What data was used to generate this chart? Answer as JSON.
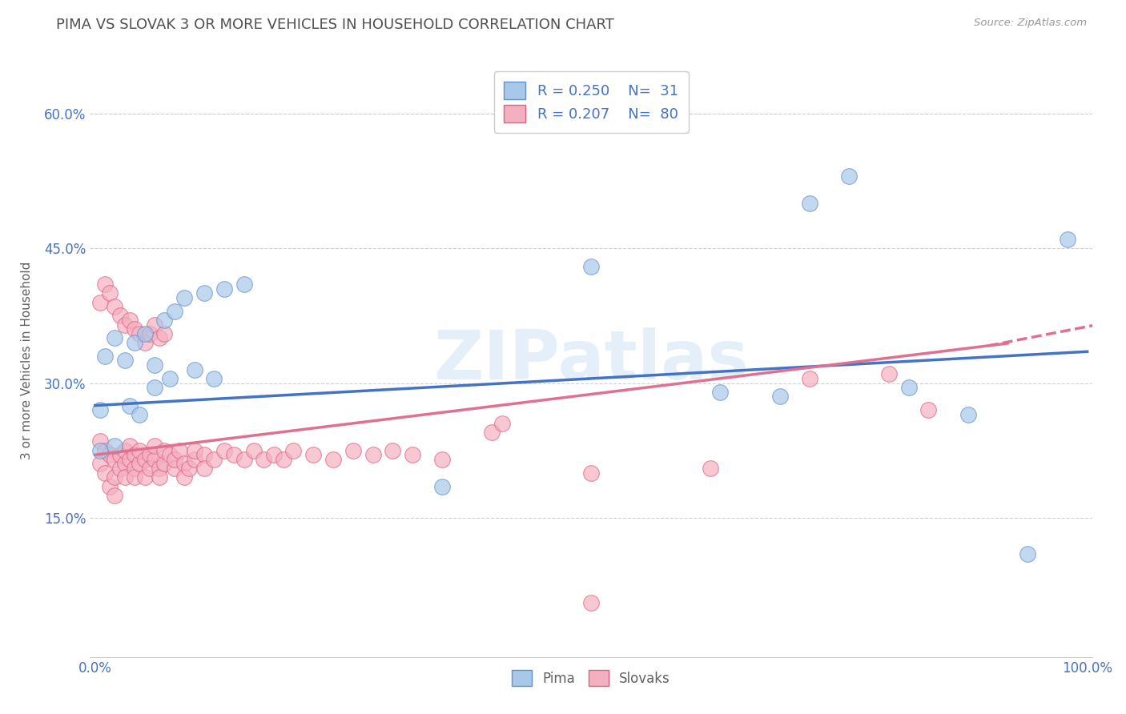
{
  "title": "PIMA VS SLOVAK 3 OR MORE VEHICLES IN HOUSEHOLD CORRELATION CHART",
  "source": "Source: ZipAtlas.com",
  "xlabel": "",
  "ylabel": "3 or more Vehicles in Household",
  "watermark": "ZIPatlas",
  "legend_labels": [
    "Pima",
    "Slovaks"
  ],
  "pima_R": 0.25,
  "pima_N": 31,
  "slovak_R": 0.207,
  "slovak_N": 80,
  "xlim": [
    -0.005,
    1.005
  ],
  "ylim": [
    -0.005,
    0.655
  ],
  "xticks": [
    0.0,
    0.2,
    0.4,
    0.6,
    0.8,
    1.0
  ],
  "xtick_labels": [
    "0.0%",
    "",
    "",
    "",
    "",
    "100.0%"
  ],
  "yticks": [
    0.15,
    0.3,
    0.45,
    0.6
  ],
  "ytick_labels": [
    "15.0%",
    "30.0%",
    "45.0%",
    "60.0%"
  ],
  "pima_color": "#a8c8e8",
  "slovak_color": "#f4b0c0",
  "pima_edge_color": "#6090d0",
  "slovak_edge_color": "#e06080",
  "pima_line_color": "#4472c4",
  "slovak_line_color": "#e07090",
  "background_color": "#ffffff",
  "grid_color": "#d0d0d0",
  "title_color": "#505050",
  "axis_label_color": "#606060",
  "tick_label_color": "#4472c4",
  "legend_text_color": "#4472c4",
  "pima_scatter_x": [
    0.005,
    0.01,
    0.02,
    0.03,
    0.04,
    0.05,
    0.06,
    0.07,
    0.08,
    0.09,
    0.11,
    0.13,
    0.15,
    0.5,
    0.72,
    0.76,
    0.82,
    0.88,
    0.94,
    0.98,
    0.005,
    0.02,
    0.035,
    0.045,
    0.06,
    0.075,
    0.1,
    0.12,
    0.35,
    0.63,
    0.69
  ],
  "pima_scatter_y": [
    0.27,
    0.33,
    0.35,
    0.325,
    0.345,
    0.355,
    0.32,
    0.37,
    0.38,
    0.395,
    0.4,
    0.405,
    0.41,
    0.43,
    0.5,
    0.53,
    0.295,
    0.265,
    0.11,
    0.46,
    0.225,
    0.23,
    0.275,
    0.265,
    0.295,
    0.305,
    0.315,
    0.305,
    0.185,
    0.29,
    0.285
  ],
  "slovak_scatter_x": [
    0.005,
    0.005,
    0.01,
    0.01,
    0.015,
    0.015,
    0.02,
    0.02,
    0.02,
    0.025,
    0.025,
    0.03,
    0.03,
    0.03,
    0.035,
    0.035,
    0.04,
    0.04,
    0.04,
    0.045,
    0.045,
    0.05,
    0.05,
    0.055,
    0.055,
    0.06,
    0.06,
    0.065,
    0.065,
    0.07,
    0.07,
    0.075,
    0.08,
    0.08,
    0.085,
    0.09,
    0.09,
    0.095,
    0.1,
    0.1,
    0.11,
    0.11,
    0.12,
    0.13,
    0.14,
    0.15,
    0.16,
    0.17,
    0.18,
    0.19,
    0.2,
    0.22,
    0.24,
    0.26,
    0.28,
    0.3,
    0.32,
    0.35,
    0.4,
    0.41,
    0.5,
    0.62,
    0.72,
    0.8,
    0.84,
    0.005,
    0.01,
    0.015,
    0.02,
    0.025,
    0.03,
    0.035,
    0.04,
    0.045,
    0.05,
    0.055,
    0.06,
    0.065,
    0.07,
    0.5
  ],
  "slovak_scatter_y": [
    0.235,
    0.21,
    0.225,
    0.2,
    0.22,
    0.185,
    0.215,
    0.195,
    0.175,
    0.205,
    0.22,
    0.21,
    0.225,
    0.195,
    0.215,
    0.23,
    0.22,
    0.205,
    0.195,
    0.21,
    0.225,
    0.215,
    0.195,
    0.22,
    0.205,
    0.215,
    0.23,
    0.205,
    0.195,
    0.21,
    0.225,
    0.22,
    0.205,
    0.215,
    0.225,
    0.21,
    0.195,
    0.205,
    0.215,
    0.225,
    0.22,
    0.205,
    0.215,
    0.225,
    0.22,
    0.215,
    0.225,
    0.215,
    0.22,
    0.215,
    0.225,
    0.22,
    0.215,
    0.225,
    0.22,
    0.225,
    0.22,
    0.215,
    0.245,
    0.255,
    0.2,
    0.205,
    0.305,
    0.31,
    0.27,
    0.39,
    0.41,
    0.4,
    0.385,
    0.375,
    0.365,
    0.37,
    0.36,
    0.355,
    0.345,
    0.355,
    0.365,
    0.35,
    0.355,
    0.055
  ]
}
